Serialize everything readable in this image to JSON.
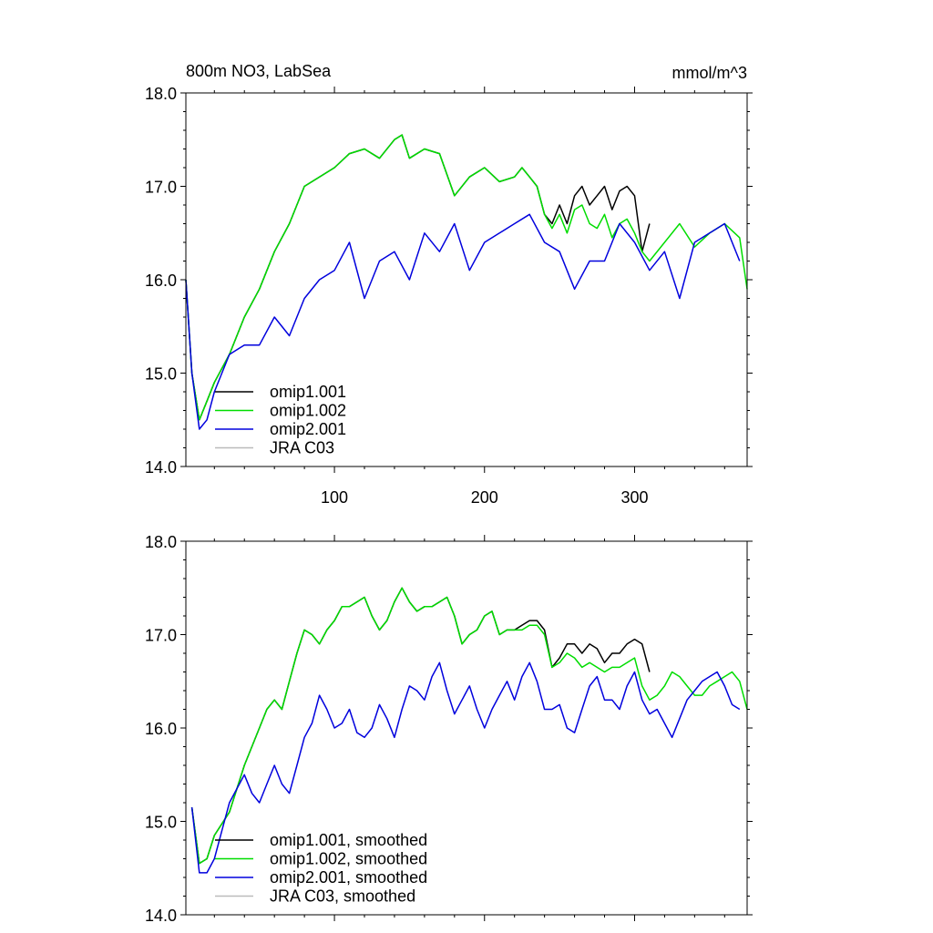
{
  "chart_data": [
    {
      "type": "line",
      "title": "800m NO3, LabSea",
      "units": "mmol/m^3",
      "xlabel": "",
      "ylabel": "",
      "xlim": [
        1,
        375
      ],
      "ylim": [
        14.0,
        18.0
      ],
      "xticks": [
        100,
        200,
        300
      ],
      "xtick_labels": [
        "100",
        "200",
        "300"
      ],
      "yticks": [
        14.0,
        15.0,
        16.0,
        17.0,
        18.0
      ],
      "ytick_labels": [
        "14.0",
        "15.0",
        "16.0",
        "17.0",
        "18.0"
      ],
      "legend_location": "bottom-left",
      "series": [
        {
          "name": "omip1.001",
          "color": "#000000",
          "x": [
            1,
            5,
            10,
            15,
            20,
            30,
            40,
            50,
            60,
            70,
            80,
            90,
            100,
            110,
            120,
            130,
            140,
            145,
            150,
            160,
            170,
            180,
            190,
            200,
            210,
            220,
            225,
            230,
            235,
            240,
            245,
            250,
            255,
            260,
            265,
            270,
            275,
            280,
            285,
            290,
            295,
            300,
            305,
            310
          ],
          "y": [
            16.0,
            15.0,
            14.5,
            14.7,
            14.9,
            15.2,
            15.6,
            15.9,
            16.3,
            16.6,
            17.0,
            17.1,
            17.2,
            17.35,
            17.4,
            17.3,
            17.5,
            17.55,
            17.3,
            17.4,
            17.35,
            16.9,
            17.1,
            17.2,
            17.05,
            17.1,
            17.2,
            17.1,
            17.0,
            16.7,
            16.6,
            16.8,
            16.6,
            16.9,
            17.0,
            16.8,
            16.9,
            17.0,
            16.75,
            16.95,
            17.0,
            16.9,
            16.3,
            16.6
          ]
        },
        {
          "name": "omip1.002",
          "color": "#00dd00",
          "x": [
            1,
            5,
            10,
            15,
            20,
            30,
            40,
            50,
            60,
            70,
            80,
            90,
            100,
            110,
            120,
            130,
            140,
            145,
            150,
            160,
            170,
            180,
            190,
            200,
            210,
            220,
            225,
            230,
            235,
            240,
            245,
            250,
            255,
            260,
            265,
            270,
            275,
            280,
            285,
            290,
            295,
            300,
            305,
            310,
            320,
            330,
            340,
            350,
            360,
            370,
            375
          ],
          "y": [
            16.0,
            15.0,
            14.5,
            14.7,
            14.9,
            15.2,
            15.6,
            15.9,
            16.3,
            16.6,
            17.0,
            17.1,
            17.2,
            17.35,
            17.4,
            17.3,
            17.5,
            17.55,
            17.3,
            17.4,
            17.35,
            16.9,
            17.1,
            17.2,
            17.05,
            17.1,
            17.2,
            17.1,
            17.0,
            16.7,
            16.55,
            16.7,
            16.5,
            16.75,
            16.8,
            16.6,
            16.55,
            16.7,
            16.45,
            16.6,
            16.65,
            16.5,
            16.3,
            16.2,
            16.4,
            16.6,
            16.35,
            16.5,
            16.6,
            16.45,
            15.9
          ]
        },
        {
          "name": "omip2.001",
          "color": "#0000dd",
          "x": [
            1,
            5,
            10,
            15,
            20,
            30,
            40,
            50,
            60,
            70,
            80,
            90,
            100,
            110,
            120,
            130,
            140,
            150,
            160,
            170,
            180,
            190,
            200,
            210,
            220,
            230,
            240,
            250,
            260,
            270,
            280,
            290,
            300,
            310,
            320,
            330,
            340,
            350,
            360,
            370
          ],
          "y": [
            16.0,
            15.0,
            14.4,
            14.5,
            14.8,
            15.2,
            15.3,
            15.3,
            15.6,
            15.4,
            15.8,
            16.0,
            16.1,
            16.4,
            15.8,
            16.2,
            16.3,
            16.0,
            16.5,
            16.3,
            16.6,
            16.1,
            16.4,
            16.5,
            16.6,
            16.7,
            16.4,
            16.3,
            15.9,
            16.2,
            16.2,
            16.6,
            16.4,
            16.1,
            16.3,
            15.8,
            16.4,
            16.5,
            16.6,
            16.2
          ]
        },
        {
          "name": "JRA C03",
          "color": "#bbbbbb",
          "x": [],
          "y": []
        }
      ]
    },
    {
      "type": "line",
      "title": "",
      "units": "",
      "xlabel": "",
      "ylabel": "",
      "xlim": [
        1,
        375
      ],
      "ylim": [
        14.0,
        18.0
      ],
      "xticks": [
        100,
        200,
        300
      ],
      "xtick_labels": [],
      "yticks": [
        14.0,
        15.0,
        16.0,
        17.0,
        18.0
      ],
      "ytick_labels": [
        "14.0",
        "15.0",
        "16.0",
        "17.0",
        "18.0"
      ],
      "legend_location": "bottom-left",
      "series": [
        {
          "name": "omip1.001, smoothed",
          "color": "#000000",
          "x": [
            5,
            10,
            15,
            20,
            30,
            40,
            50,
            55,
            60,
            65,
            70,
            75,
            80,
            85,
            90,
            95,
            100,
            105,
            110,
            115,
            120,
            125,
            130,
            135,
            140,
            145,
            150,
            155,
            160,
            165,
            170,
            175,
            180,
            185,
            190,
            195,
            200,
            205,
            210,
            215,
            220,
            225,
            230,
            235,
            240,
            245,
            250,
            255,
            260,
            265,
            270,
            275,
            280,
            285,
            290,
            295,
            300,
            305,
            310
          ],
          "y": [
            15.15,
            14.55,
            14.6,
            14.85,
            15.1,
            15.6,
            16.0,
            16.2,
            16.3,
            16.2,
            16.5,
            16.8,
            17.05,
            17.0,
            16.9,
            17.05,
            17.15,
            17.3,
            17.3,
            17.35,
            17.4,
            17.2,
            17.05,
            17.15,
            17.35,
            17.5,
            17.35,
            17.25,
            17.3,
            17.3,
            17.35,
            17.4,
            17.2,
            16.9,
            17.0,
            17.05,
            17.2,
            17.25,
            17.0,
            17.05,
            17.05,
            17.1,
            17.15,
            17.15,
            17.05,
            16.65,
            16.75,
            16.9,
            16.9,
            16.8,
            16.9,
            16.85,
            16.7,
            16.8,
            16.8,
            16.9,
            16.95,
            16.9,
            16.6
          ]
        },
        {
          "name": "omip1.002, smoothed",
          "color": "#00dd00",
          "x": [
            5,
            10,
            15,
            20,
            30,
            40,
            50,
            55,
            60,
            65,
            70,
            75,
            80,
            85,
            90,
            95,
            100,
            105,
            110,
            115,
            120,
            125,
            130,
            135,
            140,
            145,
            150,
            155,
            160,
            165,
            170,
            175,
            180,
            185,
            190,
            195,
            200,
            205,
            210,
            215,
            220,
            225,
            230,
            235,
            240,
            245,
            250,
            255,
            260,
            265,
            270,
            275,
            280,
            285,
            290,
            295,
            300,
            305,
            310,
            315,
            320,
            325,
            330,
            335,
            340,
            345,
            350,
            355,
            360,
            365,
            370,
            375
          ],
          "y": [
            15.15,
            14.55,
            14.6,
            14.85,
            15.1,
            15.6,
            16.0,
            16.2,
            16.3,
            16.2,
            16.5,
            16.8,
            17.05,
            17.0,
            16.9,
            17.05,
            17.15,
            17.3,
            17.3,
            17.35,
            17.4,
            17.2,
            17.05,
            17.15,
            17.35,
            17.5,
            17.35,
            17.25,
            17.3,
            17.3,
            17.35,
            17.4,
            17.2,
            16.9,
            17.0,
            17.05,
            17.2,
            17.25,
            17.0,
            17.05,
            17.05,
            17.05,
            17.1,
            17.1,
            17.0,
            16.65,
            16.7,
            16.8,
            16.75,
            16.65,
            16.7,
            16.65,
            16.6,
            16.65,
            16.65,
            16.7,
            16.75,
            16.45,
            16.3,
            16.35,
            16.45,
            16.6,
            16.55,
            16.45,
            16.35,
            16.35,
            16.45,
            16.5,
            16.55,
            16.6,
            16.5,
            16.2
          ]
        },
        {
          "name": "omip2.001, smoothed",
          "color": "#0000dd",
          "x": [
            5,
            10,
            15,
            20,
            25,
            30,
            35,
            40,
            45,
            50,
            55,
            60,
            65,
            70,
            75,
            80,
            85,
            90,
            95,
            100,
            105,
            110,
            115,
            120,
            125,
            130,
            135,
            140,
            145,
            150,
            155,
            160,
            165,
            170,
            175,
            180,
            185,
            190,
            195,
            200,
            205,
            210,
            215,
            220,
            225,
            230,
            235,
            240,
            245,
            250,
            255,
            260,
            265,
            270,
            275,
            280,
            285,
            290,
            295,
            300,
            305,
            310,
            315,
            320,
            325,
            330,
            335,
            340,
            345,
            350,
            355,
            360,
            365,
            370
          ],
          "y": [
            15.15,
            14.45,
            14.45,
            14.6,
            14.9,
            15.2,
            15.35,
            15.5,
            15.3,
            15.2,
            15.4,
            15.6,
            15.4,
            15.3,
            15.6,
            15.9,
            16.05,
            16.35,
            16.2,
            16.0,
            16.05,
            16.2,
            15.95,
            15.9,
            16.0,
            16.25,
            16.1,
            15.9,
            16.2,
            16.45,
            16.4,
            16.3,
            16.55,
            16.7,
            16.4,
            16.15,
            16.3,
            16.45,
            16.2,
            16.0,
            16.2,
            16.35,
            16.5,
            16.3,
            16.55,
            16.7,
            16.5,
            16.2,
            16.2,
            16.25,
            16.0,
            15.95,
            16.2,
            16.45,
            16.55,
            16.3,
            16.3,
            16.2,
            16.45,
            16.6,
            16.3,
            16.15,
            16.2,
            16.05,
            15.9,
            16.1,
            16.3,
            16.4,
            16.5,
            16.55,
            16.6,
            16.45,
            16.25,
            16.2
          ]
        },
        {
          "name": "JRA C03, smoothed",
          "color": "#bbbbbb",
          "x": [],
          "y": []
        }
      ]
    }
  ]
}
